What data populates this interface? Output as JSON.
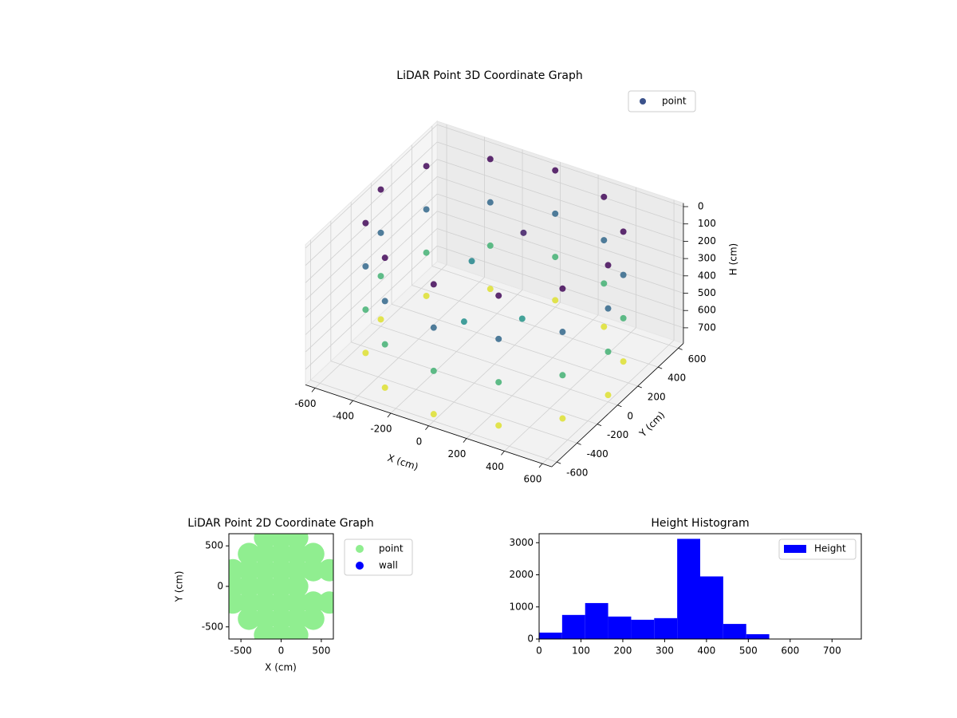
{
  "chart_data": [
    {
      "type": "scatter3d",
      "title": "LiDAR Point 3D Coordinate Graph",
      "xlabel": "X (cm)",
      "ylabel": "Y (cm)",
      "zlabel": "H (cm)",
      "xlim": [
        -650,
        650
      ],
      "ylim": [
        -650,
        650
      ],
      "zlim": [
        790,
        -20
      ],
      "xticks": [
        -600,
        -400,
        -200,
        0,
        200,
        400,
        600
      ],
      "yticks": [
        -600,
        -400,
        -200,
        0,
        200,
        400,
        600
      ],
      "zticks": [
        0,
        100,
        200,
        300,
        400,
        500,
        600,
        700
      ],
      "colormap": "viridis",
      "grid": true,
      "legend": "upper right",
      "series": [
        {
          "name": "point",
          "color": "#3b528b",
          "x": [
            600,
            520,
            300,
            0,
            -300,
            -520,
            -600,
            -520,
            -300,
            0,
            300,
            520,
            600,
            520,
            300,
            0,
            -300,
            -520,
            -600,
            -520,
            -300,
            0,
            300,
            520,
            600,
            520,
            300,
            0,
            -300,
            -520,
            -600,
            -520,
            -300,
            0,
            300,
            520,
            600,
            520,
            300,
            0,
            -300,
            -520,
            -600,
            -520,
            -300,
            0,
            300,
            520,
            100,
            -200,
            200,
            0
          ],
          "y": [
            0,
            300,
            520,
            600,
            520,
            300,
            0,
            -300,
            -520,
            -600,
            -520,
            -300,
            0,
            300,
            520,
            600,
            520,
            300,
            0,
            -300,
            -520,
            -600,
            -520,
            -300,
            0,
            300,
            520,
            600,
            520,
            300,
            0,
            -300,
            -520,
            -600,
            -520,
            -300,
            0,
            300,
            520,
            600,
            520,
            300,
            0,
            -300,
            -520,
            -600,
            -520,
            -300,
            100,
            150,
            -100,
            -300
          ],
          "z": [
            0,
            0,
            0,
            0,
            0,
            0,
            0,
            0,
            0,
            0,
            0,
            0,
            250,
            250,
            250,
            250,
            250,
            250,
            250,
            250,
            250,
            250,
            250,
            250,
            500,
            500,
            500,
            500,
            500,
            500,
            500,
            500,
            500,
            500,
            500,
            500,
            750,
            750,
            750,
            750,
            750,
            750,
            750,
            750,
            750,
            750,
            750,
            750,
            50,
            350,
            400,
            380
          ]
        }
      ]
    },
    {
      "type": "scatter",
      "title": "LiDAR Point 2D Coordinate Graph",
      "xlabel": "X (cm)",
      "ylabel": "Y (cm)",
      "xlim": [
        -650,
        650
      ],
      "ylim": [
        -650,
        650
      ],
      "xticks": [
        -500,
        0,
        500
      ],
      "yticks": [
        -500,
        0,
        500
      ],
      "legend": "outside right",
      "series": [
        {
          "name": "point",
          "color": "#90ee90",
          "x": [
            -200,
            0,
            200,
            -400,
            -200,
            0,
            200,
            400,
            -600,
            -400,
            -200,
            0,
            200,
            400,
            600,
            -600,
            -400,
            -200,
            0,
            200,
            -600,
            -400,
            -200,
            0,
            200,
            400,
            600,
            -400,
            -200,
            0,
            200,
            400,
            -200,
            0,
            200
          ],
          "y": [
            -600,
            -600,
            -600,
            -400,
            -400,
            -400,
            -400,
            -400,
            -200,
            -200,
            -200,
            -200,
            -200,
            -200,
            -200,
            0,
            0,
            0,
            0,
            0,
            200,
            200,
            200,
            200,
            200,
            200,
            200,
            400,
            400,
            400,
            400,
            400,
            600,
            600,
            600
          ]
        },
        {
          "name": "wall",
          "color": "#0000ff",
          "x": [],
          "y": []
        }
      ]
    },
    {
      "type": "histogram",
      "title": "Height Histogram",
      "name": "Height",
      "color": "#0000ff",
      "bins": [
        0,
        55,
        110,
        165,
        220,
        275,
        330,
        385,
        440,
        495,
        550,
        605,
        660,
        715,
        770
      ],
      "counts": [
        200,
        750,
        1120,
        700,
        600,
        650,
        3120,
        1950,
        470,
        150,
        0,
        0,
        0,
        0
      ],
      "xlim": [
        0,
        770
      ],
      "ylim": [
        0,
        3280
      ],
      "xticks": [
        0,
        100,
        200,
        300,
        400,
        500,
        600,
        700
      ],
      "yticks": [
        0,
        1000,
        2000,
        3000
      ],
      "legend": "upper right"
    }
  ]
}
